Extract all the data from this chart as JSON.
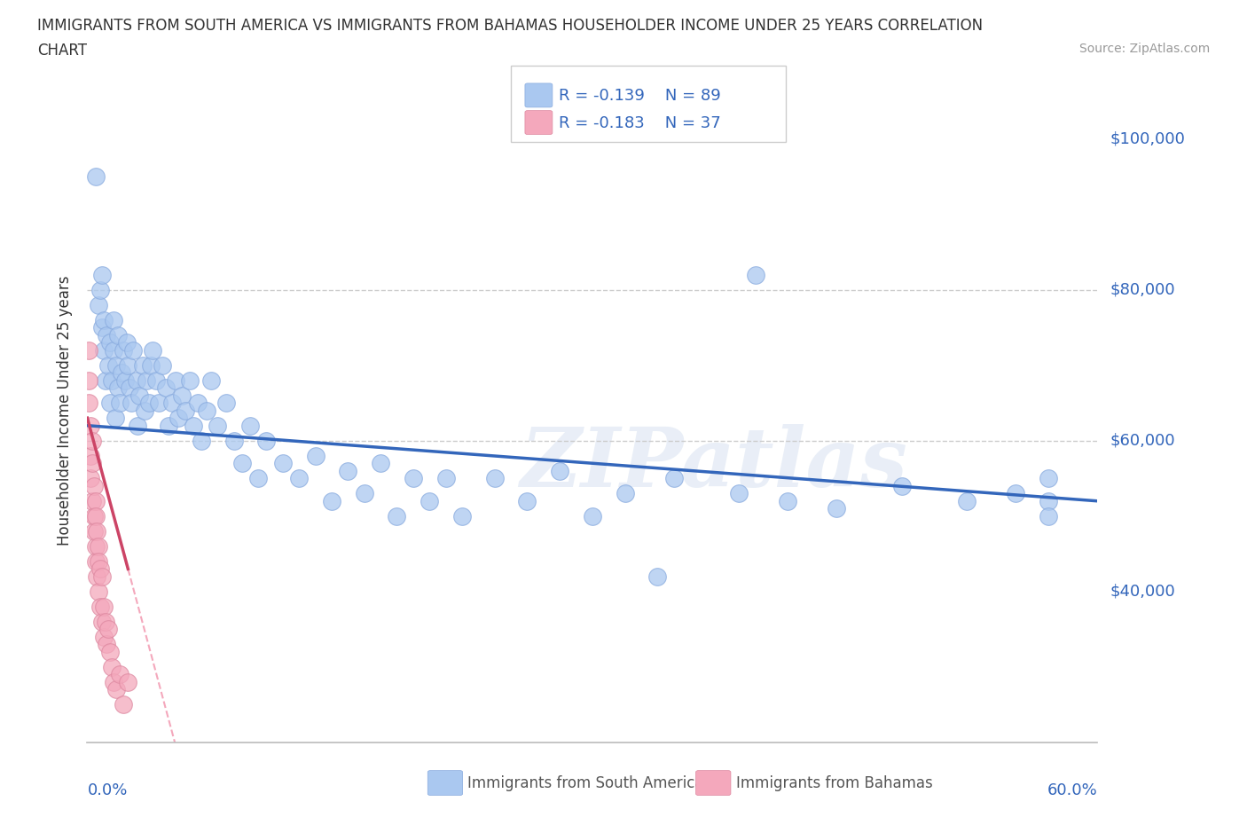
{
  "title_line1": "IMMIGRANTS FROM SOUTH AMERICA VS IMMIGRANTS FROM BAHAMAS HOUSEHOLDER INCOME UNDER 25 YEARS CORRELATION",
  "title_line2": "CHART",
  "source": "Source: ZipAtlas.com",
  "ylabel": "Householder Income Under 25 years",
  "r_sa": -0.139,
  "n_sa": 89,
  "r_bah": -0.183,
  "n_bah": 37,
  "color_sa": "#aac8f0",
  "color_bah": "#f4a8bc",
  "line_color_sa": "#3366bb",
  "line_color_bah": "#cc4466",
  "line_color_bah_dash": "#f4a8bc",
  "grid_color": "#cccccc",
  "text_color": "#333333",
  "axis_label_color": "#3366bb",
  "watermark": "ZIPatlas",
  "y_ticks": [
    40000,
    60000,
    80000,
    100000
  ],
  "y_tick_labels": [
    "$40,000",
    "$60,000",
    "$80,000",
    "$100,000"
  ],
  "xlim": [
    0.0,
    0.62
  ],
  "ylim": [
    20000,
    108000
  ],
  "xmin_label": "0.0%",
  "xmax_label": "60.0%",
  "background": "#ffffff",
  "sa_x": [
    0.005,
    0.007,
    0.008,
    0.009,
    0.009,
    0.01,
    0.01,
    0.011,
    0.012,
    0.013,
    0.014,
    0.014,
    0.015,
    0.016,
    0.016,
    0.017,
    0.018,
    0.019,
    0.019,
    0.02,
    0.021,
    0.022,
    0.023,
    0.024,
    0.025,
    0.026,
    0.027,
    0.028,
    0.03,
    0.031,
    0.032,
    0.034,
    0.035,
    0.036,
    0.038,
    0.039,
    0.04,
    0.042,
    0.044,
    0.046,
    0.048,
    0.05,
    0.052,
    0.054,
    0.056,
    0.058,
    0.06,
    0.063,
    0.065,
    0.068,
    0.07,
    0.073,
    0.076,
    0.08,
    0.085,
    0.09,
    0.095,
    0.1,
    0.105,
    0.11,
    0.12,
    0.13,
    0.14,
    0.15,
    0.16,
    0.17,
    0.18,
    0.19,
    0.2,
    0.21,
    0.22,
    0.23,
    0.25,
    0.27,
    0.29,
    0.31,
    0.33,
    0.36,
    0.4,
    0.43,
    0.46,
    0.5,
    0.54,
    0.57,
    0.59,
    0.59,
    0.59,
    0.35,
    0.41
  ],
  "sa_y": [
    95000,
    78000,
    80000,
    75000,
    82000,
    72000,
    76000,
    68000,
    74000,
    70000,
    65000,
    73000,
    68000,
    72000,
    76000,
    63000,
    70000,
    67000,
    74000,
    65000,
    69000,
    72000,
    68000,
    73000,
    70000,
    67000,
    65000,
    72000,
    68000,
    62000,
    66000,
    70000,
    64000,
    68000,
    65000,
    70000,
    72000,
    68000,
    65000,
    70000,
    67000,
    62000,
    65000,
    68000,
    63000,
    66000,
    64000,
    68000,
    62000,
    65000,
    60000,
    64000,
    68000,
    62000,
    65000,
    60000,
    57000,
    62000,
    55000,
    60000,
    57000,
    55000,
    58000,
    52000,
    56000,
    53000,
    57000,
    50000,
    55000,
    52000,
    55000,
    50000,
    55000,
    52000,
    56000,
    50000,
    53000,
    55000,
    53000,
    52000,
    51000,
    54000,
    52000,
    53000,
    52000,
    55000,
    50000,
    42000,
    82000
  ],
  "bah_x": [
    0.001,
    0.001,
    0.001,
    0.002,
    0.002,
    0.002,
    0.003,
    0.003,
    0.003,
    0.004,
    0.004,
    0.004,
    0.005,
    0.005,
    0.005,
    0.005,
    0.006,
    0.006,
    0.007,
    0.007,
    0.007,
    0.008,
    0.008,
    0.009,
    0.009,
    0.01,
    0.01,
    0.011,
    0.012,
    0.013,
    0.014,
    0.015,
    0.016,
    0.018,
    0.02,
    0.022,
    0.025
  ],
  "bah_y": [
    72000,
    68000,
    65000,
    62000,
    58000,
    55000,
    60000,
    52000,
    57000,
    50000,
    54000,
    48000,
    52000,
    46000,
    50000,
    44000,
    48000,
    42000,
    46000,
    40000,
    44000,
    38000,
    43000,
    36000,
    42000,
    38000,
    34000,
    36000,
    33000,
    35000,
    32000,
    30000,
    28000,
    27000,
    29000,
    25000,
    28000
  ]
}
